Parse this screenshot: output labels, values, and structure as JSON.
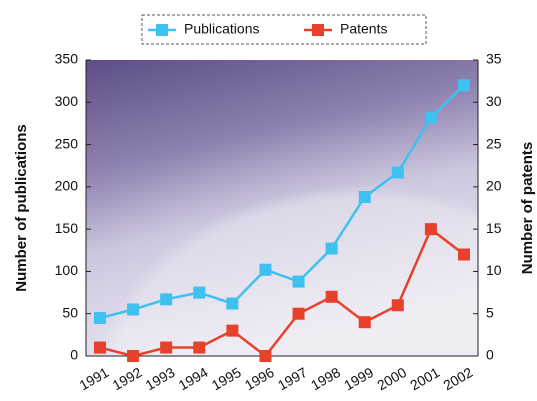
{
  "chart_data": {
    "type": "line",
    "categories": [
      "1991",
      "1992",
      "1993",
      "1994",
      "1995",
      "1996",
      "1997",
      "1998",
      "1999",
      "2000",
      "2001",
      "2002"
    ],
    "series": [
      {
        "name": "Publications",
        "color": "#3ec1ef",
        "values": [
          45,
          55,
          67,
          75,
          62,
          102,
          88,
          127,
          188,
          217,
          282,
          320
        ]
      },
      {
        "name": "Patents",
        "color": "#e8412b",
        "axis": "y2",
        "values": [
          1,
          0,
          1,
          1,
          3,
          0,
          5,
          7,
          4,
          6,
          15,
          12
        ]
      }
    ],
    "ylabel": "Number of publications",
    "y2label": "Number of patents",
    "ylim": [
      0,
      350
    ],
    "yticks": [
      0,
      50,
      100,
      150,
      200,
      250,
      300,
      350
    ],
    "y2lim": [
      0,
      35
    ],
    "y2ticks": [
      0,
      5,
      10,
      15,
      20,
      25,
      30,
      35
    ],
    "legend": "top"
  }
}
